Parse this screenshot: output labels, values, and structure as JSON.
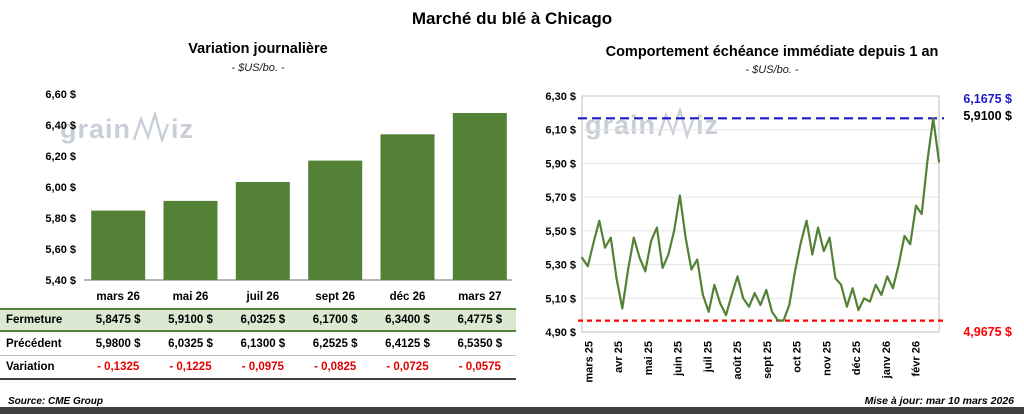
{
  "page": {
    "title": "Marché du blé à Chicago",
    "source": "Source: CME Group",
    "updated": "Mise à jour: mar 10 mars 2026",
    "watermark": {
      "prefix": "grain",
      "suffix": "iz"
    }
  },
  "chart_data": [
    {
      "type": "bar",
      "title": "Variation journalière",
      "subtitle": "- $US/bo. -",
      "categories": [
        "mars 26",
        "mai 26",
        "juil 26",
        "sept 26",
        "déc 26",
        "mars 27"
      ],
      "values": [
        5.8475,
        5.91,
        6.0325,
        6.17,
        6.34,
        6.4775
      ],
      "ylim": [
        5.4,
        6.6
      ],
      "ytick_step": 0.2,
      "ytick_labels": [
        "5,40 $",
        "5,60 $",
        "5,80 $",
        "6,00 $",
        "6,20 $",
        "6,40 $",
        "6,60 $"
      ],
      "bar_color": "#538135",
      "grid": false,
      "table": {
        "rows": [
          {
            "label": "Fermeture",
            "values": [
              "5,8475 $",
              "5,9100 $",
              "6,0325 $",
              "6,1700 $",
              "6,3400 $",
              "6,4775 $"
            ]
          },
          {
            "label": "Précédent",
            "values": [
              "5,9800 $",
              "6,0325 $",
              "6,1300 $",
              "6,2525 $",
              "6,4125 $",
              "6,5350 $"
            ]
          },
          {
            "label": "Variation",
            "values": [
              "- 0,1325",
              "- 0,1225",
              "- 0,0975",
              "- 0,0825",
              "- 0,0725",
              "- 0,0575"
            ]
          }
        ]
      }
    },
    {
      "type": "line",
      "title": "Comportement échéance immédiate depuis 1 an",
      "subtitle": "- $US/bo. -",
      "x_labels": [
        "mars 25",
        "avr 25",
        "mai 25",
        "juin 25",
        "juil 25",
        "août 25",
        "sept 25",
        "oct 25",
        "nov 25",
        "déc 25",
        "janv 26",
        "févr 26"
      ],
      "ylim": [
        4.9,
        6.3
      ],
      "ytick_step": 0.2,
      "ytick_labels": [
        "4,90 $",
        "5,10 $",
        "5,30 $",
        "5,50 $",
        "5,70 $",
        "5,90 $",
        "6,10 $",
        "6,30 $"
      ],
      "grid": true,
      "line_color": "#538135",
      "series": [
        {
          "name": "échéance immédiate",
          "values": [
            5.34,
            5.29,
            5.43,
            5.56,
            5.4,
            5.46,
            5.22,
            5.04,
            5.27,
            5.46,
            5.34,
            5.26,
            5.44,
            5.52,
            5.28,
            5.36,
            5.5,
            5.71,
            5.46,
            5.27,
            5.33,
            5.12,
            5.02,
            5.18,
            5.07,
            5.0,
            5.12,
            5.23,
            5.1,
            5.05,
            5.13,
            5.06,
            5.15,
            5.02,
            4.97,
            4.9675,
            5.06,
            5.26,
            5.43,
            5.56,
            5.36,
            5.52,
            5.38,
            5.46,
            5.22,
            5.18,
            5.05,
            5.16,
            5.03,
            5.1,
            5.08,
            5.18,
            5.12,
            5.23,
            5.16,
            5.3,
            5.47,
            5.42,
            5.65,
            5.6,
            5.92,
            6.1675,
            5.91
          ]
        }
      ],
      "high_line": {
        "value": 6.1675,
        "label": "6,1675 $",
        "color": "#1a1ac8"
      },
      "low_line": {
        "value": 4.9675,
        "label": "4,9675 $",
        "color": "#ff0000"
      },
      "last_label": {
        "value": 5.91,
        "label": "5,9100 $",
        "color": "#000000"
      }
    }
  ]
}
